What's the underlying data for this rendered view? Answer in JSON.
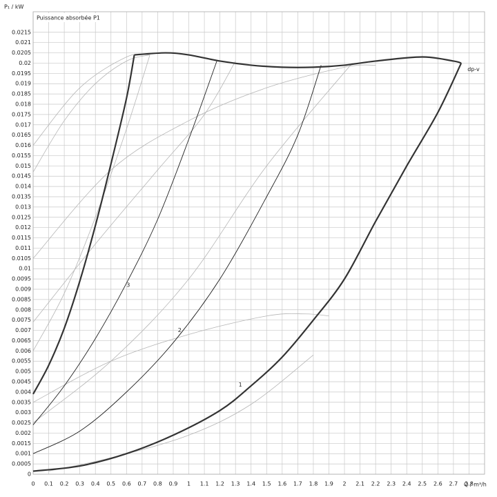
{
  "chart_data": {
    "type": "line",
    "ylabel": "P₁ / kW",
    "title": "Puissance absorbée P1",
    "xlabel": "Q / m³/h",
    "xlim": [
      0,
      2.9
    ],
    "ylim": [
      0,
      0.0225
    ],
    "grid": true,
    "xticks": [
      0,
      0.1,
      0.2,
      0.3,
      0.4,
      0.5,
      0.6,
      0.7,
      0.8,
      0.9,
      1,
      1.1,
      1.2,
      1.3,
      1.4,
      1.5,
      1.6,
      1.7,
      1.8,
      1.9,
      2,
      2.1,
      2.2,
      2.3,
      2.4,
      2.5,
      2.6,
      2.7,
      2.8
    ],
    "yticks": [
      0,
      0.0005,
      0.001,
      0.0015,
      0.002,
      0.0025,
      0.003,
      0.0035,
      0.004,
      0.0045,
      0.005,
      0.0055,
      0.006,
      0.0065,
      0.007,
      0.0075,
      0.008,
      0.0085,
      0.009,
      0.0095,
      0.01,
      0.0105,
      0.011,
      0.0115,
      0.012,
      0.0125,
      0.013,
      0.0135,
      0.014,
      0.0145,
      0.015,
      0.0155,
      0.016,
      0.0165,
      0.017,
      0.0175,
      0.018,
      0.0185,
      0.019,
      0.0195,
      0.02,
      0.0205,
      0.021,
      0.0215
    ],
    "series": [
      {
        "color": "#b5b5b5",
        "width": 0.8,
        "x": [
          0,
          0.3,
          0.6,
          0.75
        ],
        "values": [
          0.016,
          0.0188,
          0.0203,
          0.0204
        ]
      },
      {
        "color": "#b5b5b5",
        "width": 0.8,
        "x": [
          0,
          0.2,
          0.4,
          0.6,
          0.75
        ],
        "values": [
          0.0147,
          0.0172,
          0.019,
          0.0201,
          0.0204
        ]
      },
      {
        "color": "#b5b5b5",
        "width": 0.8,
        "x": [
          0,
          0.5,
          1,
          1.5,
          2,
          2.2
        ],
        "values": [
          0.0105,
          0.0148,
          0.0172,
          0.0188,
          0.0198,
          0.0199
        ]
      },
      {
        "color": "#b5b5b5",
        "width": 0.8,
        "x": [
          0,
          0.4,
          0.8,
          1.1,
          1.3
        ],
        "values": [
          0.0074,
          0.0112,
          0.0148,
          0.0175,
          0.0201
        ]
      },
      {
        "color": "#b5b5b5",
        "width": 0.8,
        "x": [
          0,
          0.5,
          1,
          1.5,
          1.75,
          1.9
        ],
        "values": [
          0.0035,
          0.0055,
          0.0068,
          0.0077,
          0.0078,
          0.0077
        ]
      },
      {
        "color": "#b5b5b5",
        "width": 0.8,
        "x": [
          0.1,
          0.5,
          1,
          1.4,
          1.8
        ],
        "values": [
          0.00015,
          0.0008,
          0.0019,
          0.0034,
          0.0058
        ]
      },
      {
        "color": "#b5b5b5",
        "width": 0.8,
        "x": [
          0,
          0.5,
          1,
          1.5,
          2.05
        ],
        "values": [
          0.0025,
          0.0055,
          0.0095,
          0.015,
          0.02
        ]
      },
      {
        "color": "#b5b5b5",
        "width": 0.8,
        "x": [
          0,
          0.2,
          0.4,
          0.6,
          0.75
        ],
        "values": [
          0.006,
          0.0088,
          0.0125,
          0.0168,
          0.0204
        ]
      },
      {
        "color": "#222222",
        "width": 0.9,
        "x": [
          0,
          0.2,
          0.4,
          0.6,
          0.8,
          1,
          1.18
        ],
        "values": [
          0.0024,
          0.0043,
          0.0066,
          0.0093,
          0.0124,
          0.0163,
          0.0201
        ]
      },
      {
        "color": "#222222",
        "width": 0.9,
        "x": [
          0,
          0.3,
          0.6,
          0.9,
          1.2,
          1.5,
          1.7,
          1.85
        ],
        "values": [
          0.001,
          0.0021,
          0.004,
          0.0064,
          0.0095,
          0.0135,
          0.0165,
          0.0199
        ]
      },
      {
        "color": "#333333",
        "width": 2.2,
        "x": [
          0,
          0.1,
          0.2,
          0.3,
          0.4,
          0.5,
          0.6,
          0.65
        ],
        "values": [
          0.0039,
          0.0053,
          0.0071,
          0.0094,
          0.0121,
          0.0151,
          0.0183,
          0.0204
        ]
      },
      {
        "color": "#333333",
        "width": 2.2,
        "x": [
          0.65,
          0.85,
          1,
          1.2,
          1.4,
          1.6,
          1.8,
          2,
          2.2,
          2.5,
          2.7,
          2.75
        ],
        "values": [
          0.0204,
          0.0205,
          0.0204,
          0.0201,
          0.0199,
          0.0198,
          0.0198,
          0.0199,
          0.0201,
          0.0203,
          0.0201,
          0.02
        ]
      },
      {
        "color": "#333333",
        "width": 2.2,
        "x": [
          0,
          0.3,
          0.6,
          0.9,
          1.2,
          1.4,
          1.6,
          1.8,
          2,
          2.2,
          2.4,
          2.6,
          2.75
        ],
        "values": [
          0.00015,
          0.0004,
          0.001,
          0.0019,
          0.0031,
          0.0043,
          0.0057,
          0.0075,
          0.0095,
          0.0123,
          0.015,
          0.0176,
          0.02
        ]
      }
    ],
    "annotations": [
      {
        "text": "1",
        "x": 1.32,
        "y": 0.00435
      },
      {
        "text": "2",
        "x": 0.93,
        "y": 0.007
      },
      {
        "text": "3",
        "x": 0.6,
        "y": 0.0092
      },
      {
        "text": "dp-v",
        "x": 2.79,
        "y": 0.0197
      }
    ]
  }
}
